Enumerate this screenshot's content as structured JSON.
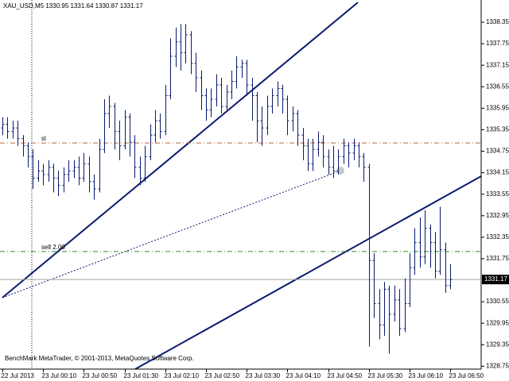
{
  "chart_data": {
    "type": "ohlc",
    "title": "XAU_USD,M5  1330.95 1331.64 1330.87 1331.17",
    "footer": "BenchMark MetaTrader, © 2001-2013, MetaQuotes Software Corp.",
    "color": "#0b1a6e",
    "categories": [
      "22 Jul 2013",
      null,
      null,
      null,
      null,
      null,
      null,
      null,
      "23 Jul 00:10",
      null,
      null,
      null,
      null,
      null,
      null,
      null,
      "23 Jul 00:50",
      null,
      null,
      null,
      null,
      null,
      null,
      null,
      "23 Jul 01:30",
      null,
      null,
      null,
      null,
      null,
      null,
      null,
      "23 Jul 02:10",
      null,
      null,
      null,
      null,
      null,
      null,
      null,
      "23 Jul 02:50",
      null,
      null,
      null,
      null,
      null,
      null,
      null,
      "23 Jul 03:30",
      null,
      null,
      null,
      null,
      null,
      null,
      null,
      "23 Jul 04:10",
      null,
      null,
      null,
      null,
      null,
      null,
      null,
      "23 Jul 04:50",
      null,
      null,
      null,
      null,
      null,
      null,
      null,
      "23 Jul 05:30",
      null,
      null,
      null,
      null,
      null,
      null,
      null,
      "23 Jul 06:10",
      null,
      null,
      null,
      null,
      null,
      null,
      null,
      "23 Jul 06:50"
    ],
    "open": [
      1335.4,
      1335.5,
      1335.3,
      1335.4,
      1335.1,
      1334.9,
      1334.6,
      1334.0,
      1334.2,
      1334.1,
      1334.3,
      1334.0,
      1333.8,
      1334.1,
      1334.2,
      1334.3,
      1334.0,
      1334.4,
      1333.9,
      1333.7,
      1334.8,
      1335.8,
      1336.0,
      1335.3,
      1334.9,
      1335.7,
      1335.0,
      1334.3,
      1334.0,
      1334.6,
      1335.2,
      1335.6,
      1335.3,
      1336.3,
      1337.4,
      1337.8,
      1337.5,
      1338.0,
      1337.2,
      1336.8,
      1336.3,
      1335.9,
      1336.2,
      1336.6,
      1336.0,
      1336.4,
      1336.7,
      1337.1,
      1337.2,
      1336.6,
      1336.3,
      1335.6,
      1335.4,
      1336.0,
      1336.3,
      1336.5,
      1336.2,
      1335.6,
      1335.8,
      1335.2,
      1334.9,
      1334.4,
      1334.8,
      1335.0,
      1334.6,
      1334.3,
      1334.2,
      1334.6,
      1334.9,
      1334.7,
      1334.9,
      1334.6,
      1334.3,
      1331.7,
      1330.5,
      1329.9,
      1330.9,
      1330.2,
      1330.6,
      1329.8,
      1330.5,
      1331.5,
      1332.2,
      1331.8,
      1332.6,
      1332.2,
      1331.4,
      1332.0,
      1331.0
    ],
    "high": [
      1335.7,
      1335.7,
      1335.6,
      1335.6,
      1335.2,
      1335.0,
      1334.8,
      1334.5,
      1334.4,
      1334.5,
      1334.4,
      1334.2,
      1334.3,
      1334.5,
      1334.5,
      1334.6,
      1334.7,
      1334.6,
      1334.1,
      1335.1,
      1336.2,
      1336.3,
      1336.1,
      1335.6,
      1335.9,
      1335.8,
      1335.2,
      1334.6,
      1334.9,
      1335.5,
      1335.9,
      1335.8,
      1336.6,
      1337.9,
      1338.2,
      1338.3,
      1338.3,
      1338.1,
      1337.5,
      1337.0,
      1336.5,
      1336.5,
      1336.9,
      1336.8,
      1336.6,
      1337.0,
      1337.4,
      1337.3,
      1337.3,
      1336.8,
      1336.4,
      1336.0,
      1336.3,
      1336.5,
      1336.7,
      1336.6,
      1336.3,
      1336.0,
      1335.9,
      1335.4,
      1335.1,
      1335.1,
      1335.3,
      1335.2,
      1334.8,
      1334.9,
      1334.8,
      1335.1,
      1335.0,
      1335.1,
      1335.0,
      1334.7,
      1334.4,
      1331.9,
      1330.9,
      1331.1,
      1331.0,
      1331.0,
      1330.9,
      1331.2,
      1331.9,
      1332.6,
      1332.9,
      1333.1,
      1332.7,
      1332.5,
      1333.2,
      1332.2,
      1331.6
    ],
    "low": [
      1335.2,
      1335.1,
      1335.1,
      1334.9,
      1334.6,
      1334.3,
      1333.7,
      1333.9,
      1333.8,
      1333.9,
      1333.6,
      1333.5,
      1333.6,
      1333.9,
      1334.0,
      1333.8,
      1333.9,
      1333.6,
      1333.4,
      1333.6,
      1334.7,
      1335.4,
      1334.8,
      1334.5,
      1334.8,
      1334.6,
      1334.0,
      1333.8,
      1333.9,
      1334.5,
      1335.0,
      1335.1,
      1335.2,
      1336.2,
      1337.1,
      1337.0,
      1337.2,
      1336.9,
      1336.4,
      1335.9,
      1335.6,
      1335.7,
      1336.0,
      1335.8,
      1335.9,
      1336.2,
      1336.5,
      1336.8,
      1336.3,
      1335.6,
      1335.0,
      1334.9,
      1335.2,
      1335.8,
      1336.0,
      1335.8,
      1335.2,
      1335.3,
      1334.9,
      1334.5,
      1334.2,
      1334.2,
      1334.6,
      1334.3,
      1334.1,
      1334.0,
      1334.1,
      1334.4,
      1334.3,
      1334.5,
      1334.3,
      1333.9,
      1329.3,
      1330.1,
      1329.5,
      1329.6,
      1329.1,
      1330.0,
      1329.6,
      1329.7,
      1330.4,
      1331.3,
      1331.5,
      1331.6,
      1331.5,
      1331.2,
      1331.3,
      1330.8,
      1330.9
    ],
    "close": [
      1335.5,
      1335.3,
      1335.4,
      1335.1,
      1334.9,
      1334.6,
      1334.0,
      1334.2,
      1334.1,
      1334.3,
      1334.0,
      1333.8,
      1334.1,
      1334.2,
      1334.3,
      1334.0,
      1334.4,
      1333.9,
      1333.7,
      1334.8,
      1335.8,
      1336.0,
      1335.3,
      1334.9,
      1335.7,
      1335.0,
      1334.3,
      1334.0,
      1334.6,
      1335.2,
      1335.6,
      1335.3,
      1336.3,
      1337.4,
      1337.8,
      1337.5,
      1338.0,
      1337.2,
      1336.8,
      1336.3,
      1335.9,
      1336.2,
      1336.6,
      1336.0,
      1336.4,
      1336.7,
      1337.1,
      1337.2,
      1336.6,
      1336.3,
      1335.6,
      1335.4,
      1336.0,
      1336.3,
      1336.5,
      1336.2,
      1335.6,
      1335.8,
      1335.2,
      1334.9,
      1334.4,
      1334.8,
      1335.0,
      1334.6,
      1334.3,
      1334.2,
      1334.6,
      1334.9,
      1334.7,
      1334.9,
      1334.6,
      1334.3,
      1331.7,
      1330.5,
      1329.9,
      1330.9,
      1330.2,
      1330.6,
      1329.8,
      1330.5,
      1331.5,
      1332.2,
      1331.8,
      1332.6,
      1332.2,
      1331.4,
      1332.0,
      1331.0,
      1331.17
    ],
    "current": 1331.17,
    "levels": [
      {
        "label": "sl",
        "value": 1334.98,
        "color": "#b8673e"
      },
      {
        "label": "sell 2.00",
        "value": 1331.95,
        "color": "#2e8b2e"
      }
    ],
    "ylim": [
      1328.67,
      1338.97
    ],
    "yticks": [
      1338.35,
      1337.75,
      1337.15,
      1336.55,
      1335.95,
      1335.35,
      1334.75,
      1334.15,
      1333.55,
      1332.95,
      1332.35,
      1331.75,
      1330.55,
      1329.95,
      1329.35,
      1328.75
    ]
  }
}
